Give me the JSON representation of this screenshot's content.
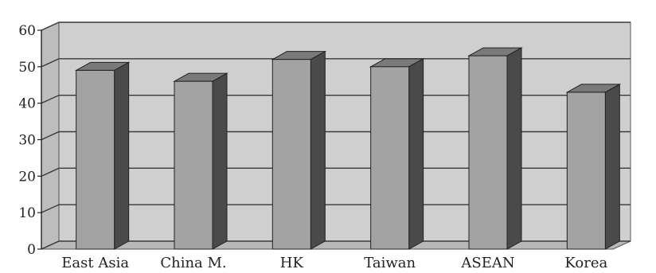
{
  "chart_data": {
    "type": "bar",
    "title": "",
    "xlabel": "",
    "ylabel": "",
    "categories": [
      "East Asia",
      "China M.",
      "HK",
      "Taiwan",
      "ASEAN",
      "Korea"
    ],
    "values": [
      49,
      46,
      52,
      50,
      53,
      43
    ],
    "ylim": [
      0,
      60
    ],
    "yticks": [
      "0",
      "10",
      "20",
      "30",
      "40",
      "50",
      "60"
    ],
    "grid": true,
    "three_d": true,
    "colors": {
      "bar_front": "#a3a3a3",
      "bar_top": "#7a7a7a",
      "bar_side": "#4a4a4a",
      "back_wall": "#cfcfcf",
      "floor": "#b8b8b8",
      "grid": "#3a3a3a"
    }
  }
}
